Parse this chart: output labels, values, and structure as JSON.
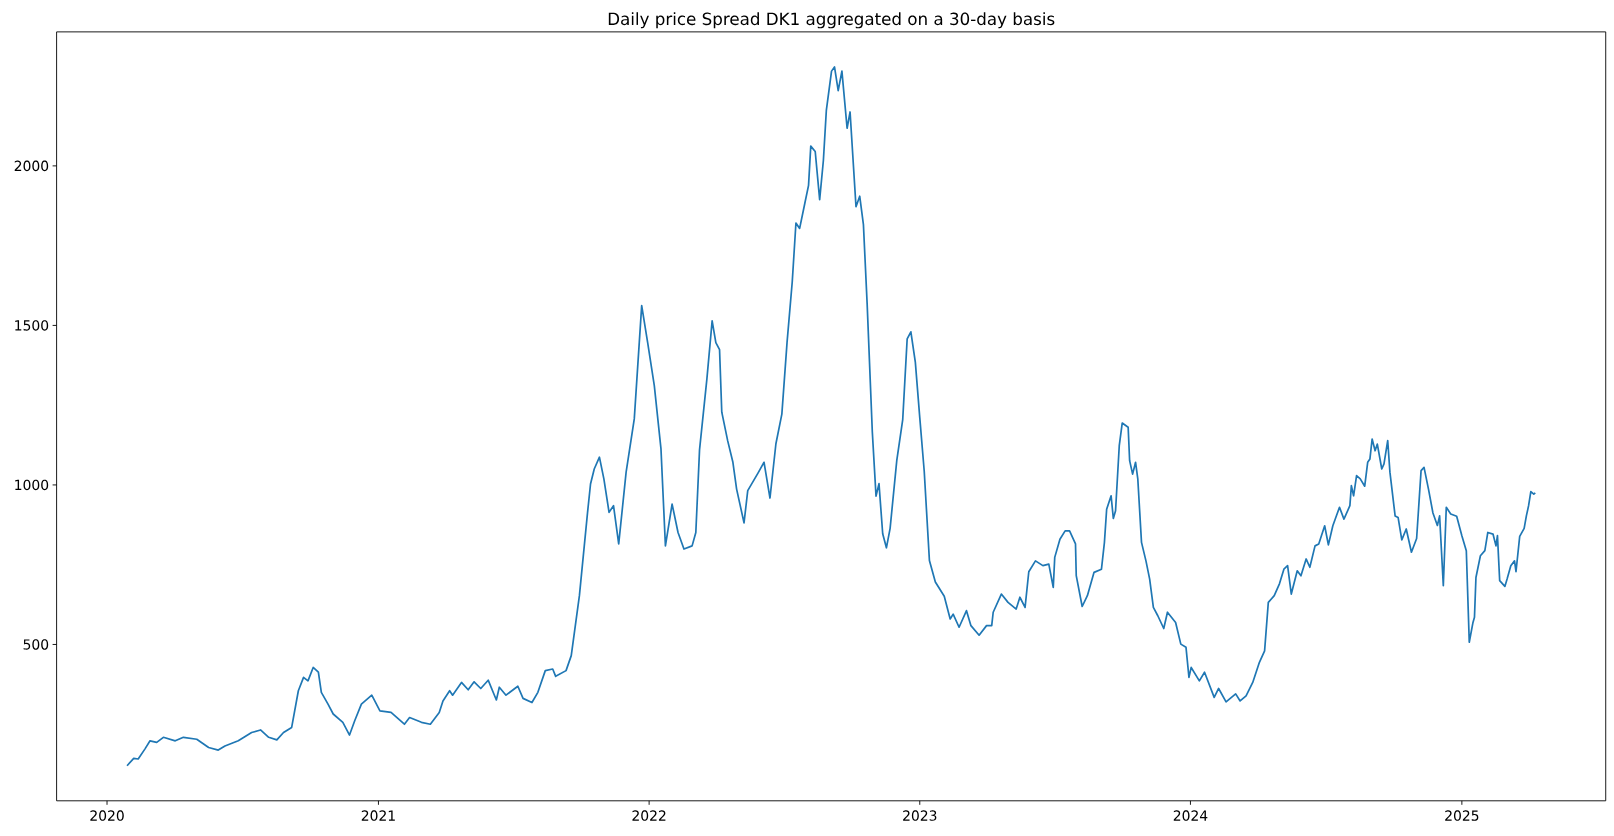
{
  "chart_data": {
    "type": "line",
    "title": "Daily price Spread DK1 aggregated on a 30-day basis",
    "color": "#1f77b4",
    "xlim": [
      "2019-10-25",
      "2025-07-14"
    ],
    "ylim": [
      10,
      2420
    ],
    "xticks": [
      "2020",
      "2021",
      "2022",
      "2023",
      "2024",
      "2025"
    ],
    "yticks": [
      500,
      1000,
      1500,
      2000
    ],
    "x": [
      "2020-01-28",
      "2020-02-06",
      "2020-02-12",
      "2020-02-21",
      "2020-02-28",
      "2020-03-08",
      "2020-03-17",
      "2020-04-02",
      "2020-04-13",
      "2020-05-01",
      "2020-05-17",
      "2020-05-30",
      "2020-06-08",
      "2020-06-26",
      "2020-07-14",
      "2020-07-26",
      "2020-08-06",
      "2020-08-17",
      "2020-08-26",
      "2020-09-06",
      "2020-09-15",
      "2020-09-22",
      "2020-09-28",
      "2020-10-05",
      "2020-10-12",
      "2020-10-16",
      "2020-10-25",
      "2020-11-01",
      "2020-11-14",
      "2020-11-23",
      "2020-11-30",
      "2020-12-09",
      "2020-12-23",
      "2021-01-03",
      "2021-01-18",
      "2021-02-05",
      "2021-02-12",
      "2021-02-28",
      "2021-03-12",
      "2021-03-24",
      "2021-03-29",
      "2021-04-07",
      "2021-04-11",
      "2021-04-23",
      "2021-05-02",
      "2021-05-10",
      "2021-05-19",
      "2021-05-29",
      "2021-06-09",
      "2021-06-13",
      "2021-06-22",
      "2021-07-08",
      "2021-07-15",
      "2021-07-27",
      "2021-08-04",
      "2021-08-14",
      "2021-08-24",
      "2021-08-28",
      "2021-09-11",
      "2021-09-18",
      "2021-09-29",
      "2021-10-10",
      "2021-10-14",
      "2021-10-19",
      "2021-10-26",
      "2021-11-01",
      "2021-11-08",
      "2021-11-14",
      "2021-11-21",
      "2021-12-01",
      "2021-12-12",
      "2021-12-22",
      "2021-12-30",
      "2022-01-08",
      "2022-01-17",
      "2022-01-23",
      "2022-02-01",
      "2022-02-09",
      "2022-02-17",
      "2022-02-28",
      "2022-03-05",
      "2022-03-10",
      "2022-03-20",
      "2022-03-27",
      "2022-04-01",
      "2022-04-06",
      "2022-04-09",
      "2022-04-17",
      "2022-04-24",
      "2022-04-29",
      "2022-05-09",
      "2022-05-14",
      "2022-05-28",
      "2022-06-05",
      "2022-06-13",
      "2022-06-21",
      "2022-06-29",
      "2022-07-06",
      "2022-07-13",
      "2022-07-18",
      "2022-07-23",
      "2022-07-30",
      "2022-08-04",
      "2022-08-07",
      "2022-08-13",
      "2022-08-19",
      "2022-08-24",
      "2022-08-28",
      "2022-09-04",
      "2022-09-08",
      "2022-09-13",
      "2022-09-18",
      "2022-09-25",
      "2022-09-29",
      "2022-10-07",
      "2022-10-12",
      "2022-10-17",
      "2022-10-22",
      "2022-10-29",
      "2022-11-03",
      "2022-11-07",
      "2022-11-12",
      "2022-11-17",
      "2022-11-22",
      "2022-12-01",
      "2022-12-09",
      "2022-12-15",
      "2022-12-20",
      "2022-12-26",
      "2023-01-01",
      "2023-01-07",
      "2023-01-14",
      "2023-01-22",
      "2023-02-03",
      "2023-02-11",
      "2023-02-15",
      "2023-02-23",
      "2023-03-05",
      "2023-03-11",
      "2023-03-22",
      "2023-04-01",
      "2023-04-08",
      "2023-04-10",
      "2023-04-21",
      "2023-04-30",
      "2023-05-11",
      "2023-05-16",
      "2023-05-23",
      "2023-05-28",
      "2023-06-06",
      "2023-06-16",
      "2023-06-24",
      "2023-06-30",
      "2023-07-02",
      "2023-07-09",
      "2023-07-16",
      "2023-07-22",
      "2023-07-30",
      "2023-07-31",
      "2023-08-08",
      "2023-08-15",
      "2023-08-24",
      "2023-09-03",
      "2023-09-07",
      "2023-09-10",
      "2023-09-16",
      "2023-09-19",
      "2023-09-22",
      "2023-09-27",
      "2023-10-01",
      "2023-10-09",
      "2023-10-11",
      "2023-10-15",
      "2023-10-19",
      "2023-10-22",
      "2023-10-27",
      "2023-11-02",
      "2023-11-07",
      "2023-11-12",
      "2023-11-18",
      "2023-11-26",
      "2023-12-01",
      "2023-12-12",
      "2023-12-19",
      "2023-12-26",
      "2023-12-30",
      "2024-01-02",
      "2024-01-13",
      "2024-01-20",
      "2024-02-02",
      "2024-02-08",
      "2024-02-18",
      "2024-03-02",
      "2024-03-08",
      "2024-03-16",
      "2024-03-25",
      "2024-04-03",
      "2024-04-10",
      "2024-04-15",
      "2024-04-23",
      "2024-04-30",
      "2024-05-06",
      "2024-05-11",
      "2024-05-16",
      "2024-05-24",
      "2024-05-29",
      "2024-06-05",
      "2024-06-10",
      "2024-06-17",
      "2024-06-22",
      "2024-06-30",
      "2024-07-05",
      "2024-07-11",
      "2024-07-15",
      "2024-07-20",
      "2024-07-26",
      "2024-08-03",
      "2024-08-05",
      "2024-08-08",
      "2024-08-12",
      "2024-08-17",
      "2024-08-23",
      "2024-08-27",
      "2024-08-30",
      "2024-09-02",
      "2024-09-06",
      "2024-09-09",
      "2024-09-15",
      "2024-09-18",
      "2024-09-23",
      "2024-09-26",
      "2024-10-03",
      "2024-10-07",
      "2024-10-12",
      "2024-10-18",
      "2024-10-25",
      "2024-11-01",
      "2024-11-07",
      "2024-11-11",
      "2024-11-17",
      "2024-11-23",
      "2024-11-29",
      "2024-12-02",
      "2024-12-07",
      "2024-12-11",
      "2024-12-17",
      "2024-12-25",
      "2025-01-01",
      "2025-01-07",
      "2025-01-11",
      "2025-01-16",
      "2025-01-18",
      "2025-01-20",
      "2025-01-26",
      "2025-02-01",
      "2025-02-05",
      "2025-02-12",
      "2025-02-16",
      "2025-02-18",
      "2025-02-21",
      "2025-02-28",
      "2025-03-03",
      "2025-03-08",
      "2025-03-13",
      "2025-03-15",
      "2025-03-20",
      "2025-03-26",
      "2025-03-29",
      "2025-04-01",
      "2025-04-04",
      "2025-04-08",
      "2025-04-10"
    ],
    "values": [
      120,
      143,
      141,
      172,
      198,
      193,
      209,
      198,
      209,
      203,
      177,
      169,
      182,
      198,
      224,
      232,
      209,
      201,
      224,
      240,
      355,
      397,
      386,
      428,
      413,
      350,
      313,
      282,
      256,
      216,
      261,
      313,
      341,
      292,
      287,
      250,
      271,
      256,
      250,
      287,
      323,
      355,
      341,
      381,
      358,
      383,
      362,
      388,
      326,
      366,
      341,
      369,
      331,
      318,
      350,
      418,
      423,
      400,
      418,
      465,
      653,
      914,
      1003,
      1050,
      1087,
      1019,
      914,
      935,
      815,
      1040,
      1207,
      1562,
      1447,
      1311,
      1113,
      809,
      940,
      851,
      799,
      809,
      851,
      1110,
      1334,
      1514,
      1446,
      1424,
      1228,
      1138,
      1071,
      987,
      881,
      982,
      1038,
      1071,
      959,
      1129,
      1222,
      1446,
      1636,
      1821,
      1804,
      1883,
      1939,
      2062,
      2045,
      1894,
      2017,
      2174,
      2297,
      2310,
      2236,
      2297,
      2118,
      2169,
      1872,
      1905,
      1816,
      1569,
      1166,
      965,
      1004,
      847,
      803,
      864,
      1077,
      1205,
      1458,
      1480,
      1385,
      1211,
      1043,
      763,
      696,
      651,
      580,
      595,
      554,
      606,
      559,
      529,
      559,
      559,
      601,
      658,
      632,
      611,
      648,
      616,
      728,
      762,
      747,
      752,
      679,
      773,
      830,
      856,
      856,
      815,
      716,
      619,
      653,
      726,
      736,
      820,
      924,
      966,
      895,
      919,
      1123,
      1194,
      1181,
      1076,
      1034,
      1071,
      1019,
      820,
      762,
      705,
      616,
      590,
      550,
      601,
      569,
      501,
      491,
      397,
      428,
      386,
      413,
      334,
      362,
      320,
      345,
      323,
      339,
      381,
      444,
      480,
      632,
      653,
      690,
      736,
      747,
      658,
      731,
      715,
      768,
      742,
      809,
      815,
      872,
      812,
      872,
      898,
      930,
      893,
      935,
      998,
      966,
      1029,
      1019,
      996,
      1071,
      1081,
      1144,
      1107,
      1128,
      1050,
      1066,
      1139,
      1040,
      903,
      898,
      828,
      862,
      789,
      832,
      1045,
      1055,
      987,
      912,
      873,
      903,
      684,
      930,
      909,
      902,
      841,
      794,
      507,
      569,
      585,
      710,
      778,
      794,
      851,
      846,
      809,
      841,
      700,
      682,
      705,
      747,
      762,
      728,
      839,
      864,
      903,
      935,
      979,
      971,
      975
    ]
  }
}
